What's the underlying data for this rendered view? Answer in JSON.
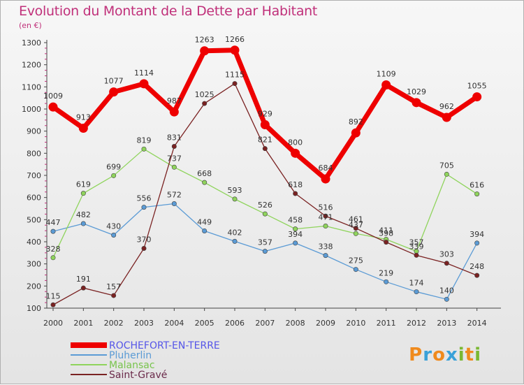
{
  "title": "Evolution du Montant de la Dette par Habitant",
  "unit": "(en €)",
  "logo": {
    "text": "Proxiti",
    "colors": [
      "#f08a1c",
      "#3aa1d8",
      "#f08a1c",
      "#3aa1d8",
      "#7ab832",
      "#f08a1c",
      "#7ab832"
    ]
  },
  "chart_data": {
    "type": "line",
    "x": [
      "2000",
      "2001",
      "2002",
      "2003",
      "2004",
      "2005",
      "2006",
      "2007",
      "2008",
      "2009",
      "2010",
      "2011",
      "2012",
      "2013",
      "2014"
    ],
    "ylim": [
      100,
      1300
    ],
    "yticks": [
      100,
      200,
      300,
      400,
      500,
      600,
      700,
      800,
      900,
      1000,
      1100,
      1200,
      1300
    ],
    "grid": false,
    "legend_placement": "bottom-left",
    "series": [
      {
        "name": "ROCHEFORT-EN-TERRE",
        "color": "#ee0000",
        "legend_color": "#5555e8",
        "thick": true,
        "values": [
          1009,
          913,
          1077,
          1114,
          987,
          1263,
          1266,
          929,
          800,
          684,
          892,
          1109,
          1029,
          962,
          1055
        ],
        "labels": [
          "1009",
          "913",
          "1077",
          "1114",
          "987",
          "1263",
          "1266",
          "929",
          "800",
          "684",
          "892",
          "1109",
          "1029",
          "962",
          "1055"
        ]
      },
      {
        "name": "Pluherlin",
        "color": "#5b9bd5",
        "legend_color": "#5b9bd5",
        "thick": false,
        "values": [
          447,
          482,
          430,
          556,
          572,
          449,
          402,
          357,
          394,
          338,
          275,
          219,
          174,
          140,
          394
        ],
        "labels": [
          "447",
          "482",
          "430",
          "556",
          "572",
          "449",
          "402",
          "357",
          "394",
          "338",
          "275",
          "219",
          "174",
          "140",
          "394"
        ]
      },
      {
        "name": "Malansac",
        "color": "#8fd45c",
        "legend_color": "#78c44c",
        "thick": false,
        "values": [
          328,
          619,
          699,
          819,
          737,
          668,
          593,
          526,
          458,
          471,
          437,
          411,
          357,
          705,
          616
        ],
        "labels": [
          "328",
          "619",
          "699",
          "819",
          "737",
          "668",
          "593",
          "526",
          "458",
          "471",
          "437",
          "411",
          "357",
          "705",
          "616"
        ]
      },
      {
        "name": "Saint-Gravé",
        "color": "#7a2222",
        "legend_color": "#6a2a4a",
        "thick": false,
        "values": [
          115,
          191,
          157,
          370,
          831,
          1025,
          1115,
          821,
          618,
          516,
          461,
          398,
          339,
          303,
          248
        ],
        "labels": [
          "115",
          "191",
          "157",
          "370",
          "831",
          "1025",
          "1115",
          "821",
          "618",
          "516",
          "461",
          "398",
          "339",
          "303",
          "248"
        ]
      }
    ]
  }
}
